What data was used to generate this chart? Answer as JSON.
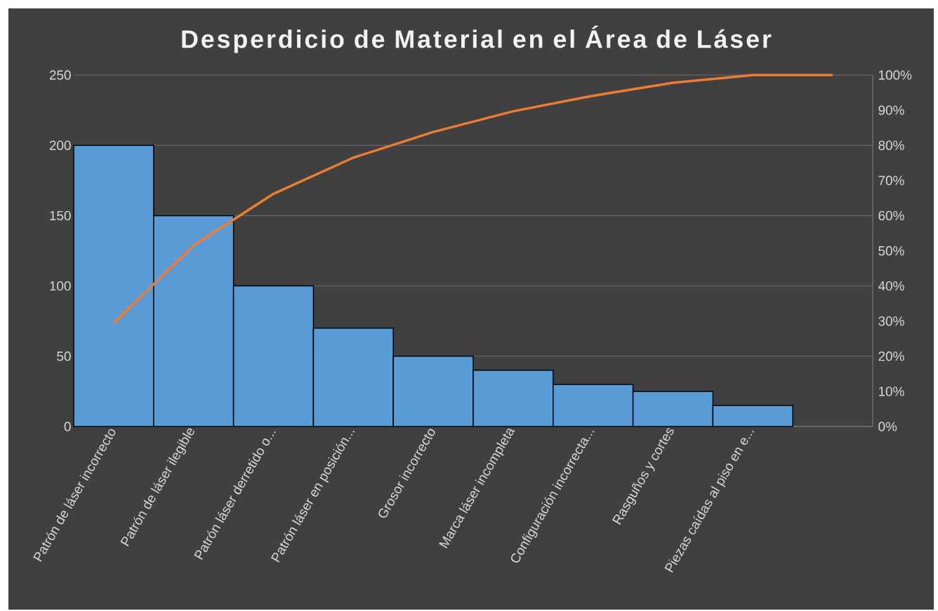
{
  "chart_data": {
    "type": "bar",
    "title": "Desperdicio de Material en el Área de Láser",
    "categories": [
      "Patrón de láser incorrecto",
      "Patrón de láser ilegible",
      "Patrón láser derretido o...",
      "Patrón láser en posición...",
      "Grosor incorrecto",
      "Marca láser incompleta",
      "Configuración incorrecta...",
      "Rasguños y cortes",
      "Piezas caídas al piso en e...",
      null
    ],
    "series": [
      {
        "color": "#5b9bd5",
        "values": [
          200,
          150,
          100,
          70,
          50,
          40,
          30,
          25,
          15,
          null
        ]
      },
      {
        "type": "line",
        "axis": "y2",
        "color": "#ed7d31",
        "values": [
          29.4,
          51.5,
          66.2,
          76.5,
          83.8,
          89.7,
          94.1,
          97.8,
          100,
          100
        ]
      }
    ],
    "ylim": [
      0,
      250
    ],
    "yticks": [
      0,
      50,
      100,
      150,
      200,
      250
    ],
    "y2lim": [
      0,
      100
    ],
    "y2ticks": [
      {
        "value": 0,
        "label": "0%"
      },
      {
        "value": 10,
        "label": "10%"
      },
      {
        "value": 20,
        "label": "20%"
      },
      {
        "value": 30,
        "label": "30%"
      },
      {
        "value": 40,
        "label": "40%"
      },
      {
        "value": 50,
        "label": "50%"
      },
      {
        "value": 60,
        "label": "60%"
      },
      {
        "value": 70,
        "label": "70%"
      },
      {
        "value": 80,
        "label": "80%"
      },
      {
        "value": 90,
        "label": "90%"
      },
      {
        "value": 100,
        "label": "100%"
      }
    ],
    "grid": "y",
    "marker": "none",
    "line_style": "solid"
  }
}
